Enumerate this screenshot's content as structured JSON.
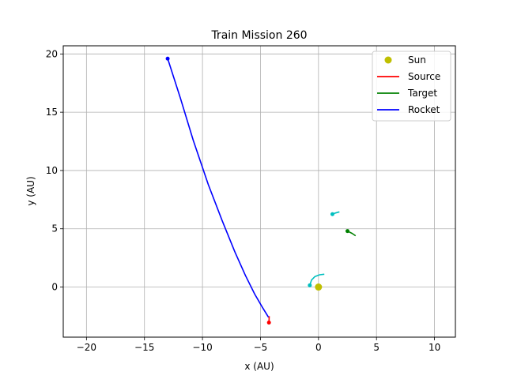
{
  "chart_data": {
    "type": "line",
    "title": "Train Mission 260",
    "xlabel": "x (AU)",
    "ylabel": "y (AU)",
    "xlim": [
      -22,
      11.8
    ],
    "ylim": [
      -4.3,
      20.7
    ],
    "xticks": [
      -20,
      -15,
      -10,
      -5,
      0,
      5,
      10
    ],
    "yticks": [
      0,
      5,
      10,
      15,
      20
    ],
    "grid": true,
    "legend_position": "top-right",
    "legend": [
      {
        "label": "Sun",
        "color": "#bfbf00",
        "marker": "dot"
      },
      {
        "label": "Source",
        "color": "#ff0000",
        "marker": "line"
      },
      {
        "label": "Target",
        "color": "#008000",
        "marker": "line"
      },
      {
        "label": "Rocket",
        "color": "#0000ff",
        "marker": "line"
      }
    ],
    "sun": {
      "x": 0,
      "y": 0,
      "color": "#bfbf00"
    },
    "series": [
      {
        "name": "Rocket",
        "color": "#0000ff",
        "points": [
          [
            -4.3,
            -2.6
          ],
          [
            -4.8,
            -1.8
          ],
          [
            -5.5,
            -0.6
          ],
          [
            -6.3,
            1.0
          ],
          [
            -7.2,
            3.0
          ],
          [
            -8.3,
            5.7
          ],
          [
            -9.5,
            8.8
          ],
          [
            -10.8,
            12.6
          ],
          [
            -11.9,
            16.2
          ],
          [
            -13.0,
            19.6
          ]
        ],
        "end_marker": [
          -13.0,
          19.6
        ]
      },
      {
        "name": "Source",
        "color": "#ff0000",
        "points": [
          [
            -4.25,
            -2.5
          ],
          [
            -4.27,
            -3.05
          ]
        ],
        "end_marker": [
          -4.27,
          -3.05
        ]
      },
      {
        "name": "Target",
        "color": "#008000",
        "points": [
          [
            3.2,
            4.4
          ],
          [
            2.9,
            4.6
          ],
          [
            2.5,
            4.8
          ]
        ],
        "end_marker": [
          2.5,
          4.8
        ]
      },
      {
        "name": "Orbit arc",
        "color": "#00bfbf",
        "points": [
          [
            0.5,
            1.1
          ],
          [
            0.1,
            1.05
          ],
          [
            -0.3,
            0.9
          ],
          [
            -0.6,
            0.6
          ],
          [
            -0.75,
            0.15
          ]
        ],
        "end_marker": [
          -0.75,
          0.15
        ]
      },
      {
        "name": "Orbit short",
        "color": "#00bfbf",
        "points": [
          [
            1.8,
            6.45
          ],
          [
            1.45,
            6.35
          ],
          [
            1.2,
            6.25
          ]
        ],
        "end_marker": [
          1.2,
          6.25
        ]
      }
    ]
  }
}
